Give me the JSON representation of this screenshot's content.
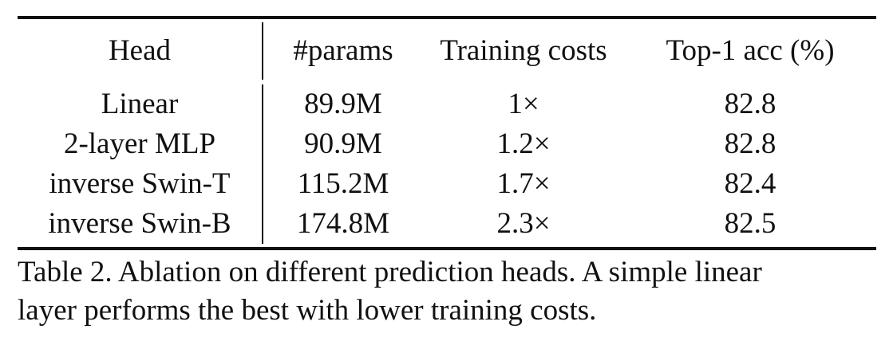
{
  "table": {
    "columns": [
      "Head",
      "#params",
      "Training costs",
      "Top-1 acc (%)"
    ],
    "rows": [
      [
        "Linear",
        "89.9M",
        "1×",
        "82.8"
      ],
      [
        "2-layer MLP",
        "90.9M",
        "1.2×",
        "82.8"
      ],
      [
        "inverse Swin-T",
        "115.2M",
        "1.7×",
        "82.4"
      ],
      [
        "inverse Swin-B",
        "174.8M",
        "2.3×",
        "82.5"
      ]
    ]
  },
  "caption": {
    "line1": "Table 2.  Ablation on different prediction heads.  A simple linear",
    "line2": "layer performs the best with lower training costs."
  }
}
